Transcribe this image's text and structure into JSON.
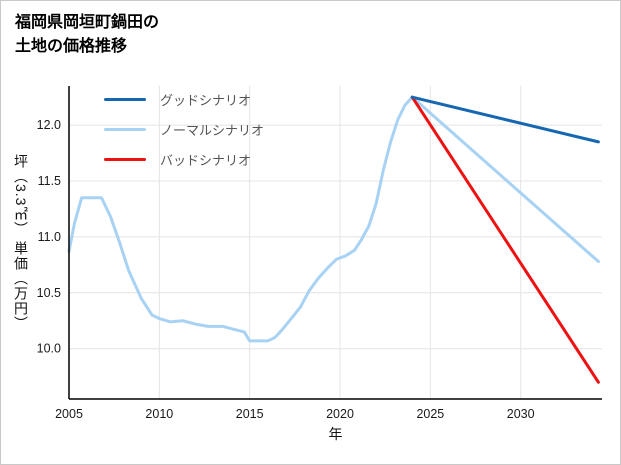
{
  "header": {
    "title_line1": "福岡県岡垣町鍋田の",
    "title_line2": "土地の価格推移"
  },
  "chart_data": {
    "type": "line",
    "title": "福岡県岡垣町鍋田の土地の価格推移",
    "xlabel": "年",
    "ylabel": "坪（3.3㎡） 単価（万円）",
    "xlim": [
      2005,
      2034.5
    ],
    "ylim": [
      9.55,
      12.35
    ],
    "xticks": [
      2005,
      2010,
      2015,
      2020,
      2025,
      2030
    ],
    "yticks": [
      10.0,
      10.5,
      11.0,
      11.5,
      12.0
    ],
    "grid": true,
    "legend_position": "top-left",
    "colors": {
      "grid": "#e4e4e4",
      "axis": "#000000",
      "tick_text": "#1a1a1a",
      "legend_text": "#555555",
      "background": "#ffffff"
    },
    "draw_order": [
      1,
      2,
      0
    ],
    "series": [
      {
        "name": "グッドシナリオ",
        "color": "#1467b0",
        "width": 3,
        "x": [
          2024,
          2034.3
        ],
        "y": [
          12.25,
          11.85
        ]
      },
      {
        "name": "ノーマルシナリオ",
        "color": "#a8d2f4",
        "width": 3,
        "x": [
          2005,
          2005.3,
          2005.7,
          2006,
          2006.8,
          2007.3,
          2007.8,
          2008.3,
          2009,
          2009.6,
          2010,
          2010.6,
          2011.3,
          2012,
          2012.7,
          2013.5,
          2014.2,
          2014.7,
          2015,
          2015.5,
          2016,
          2016.4,
          2016.8,
          2017.3,
          2017.8,
          2018.3,
          2018.8,
          2019.3,
          2019.8,
          2020.3,
          2020.8,
          2021.2,
          2021.6,
          2022,
          2022.4,
          2022.8,
          2023.2,
          2023.6,
          2024,
          2034.3
        ],
        "y": [
          10.87,
          11.12,
          11.35,
          11.35,
          11.35,
          11.18,
          10.95,
          10.7,
          10.45,
          10.3,
          10.27,
          10.24,
          10.25,
          10.22,
          10.2,
          10.2,
          10.17,
          10.15,
          10.07,
          10.07,
          10.07,
          10.1,
          10.17,
          10.27,
          10.37,
          10.52,
          10.63,
          10.72,
          10.8,
          10.83,
          10.88,
          10.98,
          11.1,
          11.3,
          11.6,
          11.85,
          12.05,
          12.18,
          12.25,
          10.78
        ]
      },
      {
        "name": "バッドシナリオ",
        "color": "#ee1111",
        "width": 3,
        "x": [
          2024,
          2034.3
        ],
        "y": [
          12.25,
          9.7
        ]
      }
    ]
  }
}
